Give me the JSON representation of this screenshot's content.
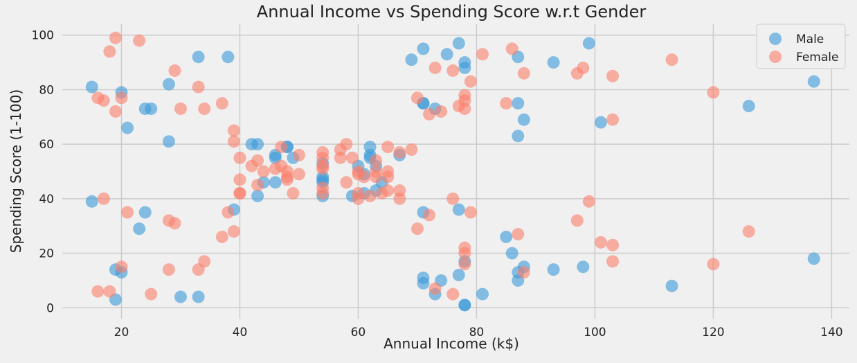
{
  "chart_data": {
    "type": "scatter",
    "title": "Annual Income vs Spending Score w.r.t Gender",
    "xlabel": "Annual Income (k$)",
    "ylabel": "Spending Score (1-100)",
    "xlim": [
      10,
      143
    ],
    "ylim": [
      -4,
      104
    ],
    "xticks": [
      20,
      40,
      60,
      80,
      100,
      120,
      140
    ],
    "yticks": [
      0,
      20,
      40,
      60,
      80,
      100
    ],
    "grid": true,
    "legend_position": "top-right",
    "series": [
      {
        "name": "Male",
        "color": "#3a9ad9",
        "points": [
          [
            15,
            81
          ],
          [
            15,
            39
          ],
          [
            19,
            3
          ],
          [
            19,
            14
          ],
          [
            20,
            79
          ],
          [
            20,
            13
          ],
          [
            21,
            66
          ],
          [
            23,
            29
          ],
          [
            24,
            73
          ],
          [
            24,
            35
          ],
          [
            25,
            73
          ],
          [
            28,
            82
          ],
          [
            28,
            61
          ],
          [
            30,
            4
          ],
          [
            33,
            92
          ],
          [
            33,
            4
          ],
          [
            38,
            92
          ],
          [
            39,
            36
          ],
          [
            42,
            60
          ],
          [
            43,
            60
          ],
          [
            43,
            41
          ],
          [
            44,
            46
          ],
          [
            46,
            55
          ],
          [
            46,
            56
          ],
          [
            46,
            46
          ],
          [
            48,
            59
          ],
          [
            48,
            59
          ],
          [
            49,
            55
          ],
          [
            54,
            41
          ],
          [
            54,
            47
          ],
          [
            54,
            46
          ],
          [
            54,
            48
          ],
          [
            54,
            53
          ],
          [
            59,
            41
          ],
          [
            60,
            52
          ],
          [
            61,
            42
          ],
          [
            61,
            49
          ],
          [
            62,
            59
          ],
          [
            62,
            55
          ],
          [
            62,
            56
          ],
          [
            63,
            52
          ],
          [
            63,
            43
          ],
          [
            64,
            46
          ],
          [
            67,
            56
          ],
          [
            69,
            91
          ],
          [
            71,
            95
          ],
          [
            71,
            75
          ],
          [
            71,
            75
          ],
          [
            71,
            35
          ],
          [
            71,
            11
          ],
          [
            71,
            9
          ],
          [
            73,
            73
          ],
          [
            73,
            5
          ],
          [
            74,
            10
          ],
          [
            75,
            93
          ],
          [
            77,
            97
          ],
          [
            77,
            36
          ],
          [
            77,
            12
          ],
          [
            78,
            90
          ],
          [
            78,
            88
          ],
          [
            78,
            17
          ],
          [
            78,
            1
          ],
          [
            78,
            1
          ],
          [
            81,
            5
          ],
          [
            85,
            26
          ],
          [
            86,
            20
          ],
          [
            87,
            92
          ],
          [
            87,
            75
          ],
          [
            87,
            63
          ],
          [
            87,
            13
          ],
          [
            87,
            10
          ],
          [
            88,
            69
          ],
          [
            88,
            15
          ],
          [
            93,
            90
          ],
          [
            93,
            14
          ],
          [
            98,
            15
          ],
          [
            99,
            97
          ],
          [
            101,
            68
          ],
          [
            113,
            8
          ],
          [
            126,
            74
          ],
          [
            137,
            83
          ],
          [
            137,
            18
          ]
        ]
      },
      {
        "name": "Female",
        "color": "#fc7f6b",
        "points": [
          [
            16,
            77
          ],
          [
            16,
            6
          ],
          [
            17,
            76
          ],
          [
            17,
            40
          ],
          [
            18,
            94
          ],
          [
            18,
            6
          ],
          [
            19,
            99
          ],
          [
            19,
            72
          ],
          [
            20,
            77
          ],
          [
            20,
            15
          ],
          [
            21,
            35
          ],
          [
            23,
            98
          ],
          [
            25,
            5
          ],
          [
            28,
            32
          ],
          [
            28,
            14
          ],
          [
            29,
            87
          ],
          [
            29,
            31
          ],
          [
            30,
            73
          ],
          [
            33,
            81
          ],
          [
            33,
            14
          ],
          [
            34,
            73
          ],
          [
            34,
            17
          ],
          [
            37,
            75
          ],
          [
            37,
            26
          ],
          [
            38,
            35
          ],
          [
            39,
            65
          ],
          [
            39,
            61
          ],
          [
            39,
            28
          ],
          [
            40,
            55
          ],
          [
            40,
            47
          ],
          [
            40,
            42
          ],
          [
            40,
            42
          ],
          [
            42,
            52
          ],
          [
            43,
            54
          ],
          [
            43,
            45
          ],
          [
            44,
            50
          ],
          [
            46,
            51
          ],
          [
            47,
            59
          ],
          [
            47,
            52
          ],
          [
            48,
            50
          ],
          [
            48,
            48
          ],
          [
            48,
            47
          ],
          [
            49,
            42
          ],
          [
            50,
            56
          ],
          [
            50,
            49
          ],
          [
            54,
            57
          ],
          [
            54,
            55
          ],
          [
            54,
            52
          ],
          [
            54,
            51
          ],
          [
            54,
            44
          ],
          [
            54,
            42
          ],
          [
            57,
            58
          ],
          [
            57,
            55
          ],
          [
            58,
            60
          ],
          [
            58,
            46
          ],
          [
            59,
            55
          ],
          [
            60,
            50
          ],
          [
            60,
            49
          ],
          [
            60,
            42
          ],
          [
            60,
            40
          ],
          [
            61,
            48
          ],
          [
            62,
            41
          ],
          [
            63,
            54
          ],
          [
            63,
            50
          ],
          [
            63,
            48
          ],
          [
            64,
            42
          ],
          [
            65,
            59
          ],
          [
            65,
            50
          ],
          [
            65,
            48
          ],
          [
            65,
            43
          ],
          [
            67,
            57
          ],
          [
            67,
            43
          ],
          [
            67,
            40
          ],
          [
            69,
            58
          ],
          [
            70,
            77
          ],
          [
            70,
            29
          ],
          [
            72,
            71
          ],
          [
            72,
            34
          ],
          [
            73,
            88
          ],
          [
            73,
            7
          ],
          [
            74,
            72
          ],
          [
            76,
            87
          ],
          [
            76,
            40
          ],
          [
            76,
            5
          ],
          [
            77,
            74
          ],
          [
            78,
            78
          ],
          [
            78,
            76
          ],
          [
            78,
            73
          ],
          [
            78,
            22
          ],
          [
            78,
            20
          ],
          [
            78,
            16
          ],
          [
            79,
            83
          ],
          [
            79,
            35
          ],
          [
            81,
            93
          ],
          [
            85,
            75
          ],
          [
            86,
            95
          ],
          [
            87,
            27
          ],
          [
            88,
            86
          ],
          [
            88,
            13
          ],
          [
            97,
            86
          ],
          [
            97,
            32
          ],
          [
            98,
            88
          ],
          [
            99,
            39
          ],
          [
            101,
            24
          ],
          [
            103,
            85
          ],
          [
            103,
            69
          ],
          [
            103,
            23
          ],
          [
            103,
            17
          ],
          [
            113,
            91
          ],
          [
            120,
            79
          ],
          [
            120,
            16
          ],
          [
            126,
            28
          ]
        ]
      }
    ]
  }
}
